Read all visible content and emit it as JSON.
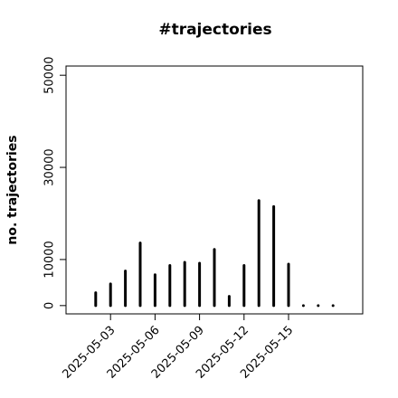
{
  "chart_data": {
    "type": "spike",
    "title": "#trajectories",
    "y_label": "no. trajectories",
    "x": [
      "2025-05-02",
      "2025-05-03",
      "2025-05-04",
      "2025-05-05",
      "2025-05-06",
      "2025-05-07",
      "2025-05-08",
      "2025-05-09",
      "2025-05-10",
      "2025-05-11",
      "2025-05-12",
      "2025-05-13",
      "2025-05-14",
      "2025-05-15",
      "2025-05-16",
      "2025-05-17",
      "2025-05-18"
    ],
    "values": [
      2800,
      4700,
      7500,
      13600,
      6700,
      8700,
      9400,
      9200,
      12200,
      2000,
      8700,
      22800,
      21500,
      9000,
      0,
      0,
      0
    ],
    "color": "#000000",
    "xlim": [
      "2025-04-30",
      "2025-05-20"
    ],
    "xticks": [
      "2025-05-03",
      "2025-05-06",
      "2025-05-09",
      "2025-05-12",
      "2025-05-15"
    ],
    "ylim": [
      -1800,
      52000
    ],
    "yticks": [
      0,
      10000,
      30000,
      50000
    ]
  }
}
